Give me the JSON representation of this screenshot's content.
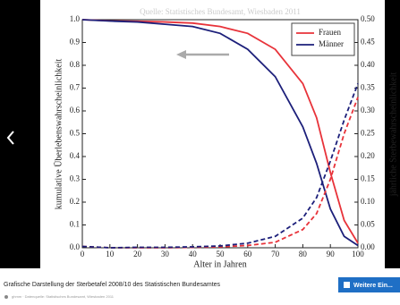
{
  "chart_data": {
    "type": "line",
    "title": "Quelle: Statistisches Bundesamt, Wiesbaden 2011",
    "x_label": "Alter in Jahren",
    "y_label": "kumulative Überlebenswahrscheinlichkeit",
    "y2_label": "jährliche Sterbewahrscheinlichkeit",
    "x": [
      0,
      10,
      20,
      30,
      40,
      50,
      60,
      70,
      80,
      85,
      90,
      95,
      100
    ],
    "series": [
      {
        "name": "Frauen",
        "color": "#e8333a",
        "values": [
          1.0,
          0.995,
          0.993,
          0.99,
          0.985,
          0.97,
          0.94,
          0.87,
          0.72,
          0.57,
          0.33,
          0.12,
          0.02
        ]
      },
      {
        "name": "Männer",
        "color": "#1c1f7a",
        "values": [
          1.0,
          0.994,
          0.99,
          0.98,
          0.97,
          0.94,
          0.87,
          0.75,
          0.53,
          0.37,
          0.17,
          0.05,
          0.01
        ]
      },
      {
        "color": "#e8333a",
        "line_style": "dashed",
        "axis": "y2",
        "values": [
          0.003,
          0.0,
          0.0,
          0.0,
          0.001,
          0.002,
          0.005,
          0.012,
          0.04,
          0.075,
          0.15,
          0.25,
          0.33
        ]
      },
      {
        "color": "#1c1f7a",
        "line_style": "dashed",
        "axis": "y2",
        "values": [
          0.003,
          0.0,
          0.001,
          0.001,
          0.002,
          0.004,
          0.01,
          0.025,
          0.065,
          0.11,
          0.19,
          0.28,
          0.36
        ]
      }
    ],
    "xlim": [
      0,
      100
    ],
    "xticks": [
      0,
      10,
      20,
      30,
      40,
      50,
      60,
      70,
      80,
      90,
      100
    ],
    "ylim": [
      0,
      1
    ],
    "yticks": [
      {
        "value": 0,
        "label": "0.0"
      },
      0.1,
      0.2,
      0.3,
      0.4,
      0.5,
      0.6,
      0.7,
      0.8,
      0.9,
      {
        "value": 1,
        "label": "1.0"
      }
    ],
    "y2lim": [
      0,
      0.5
    ],
    "y2ticks": [
      {
        "value": 0,
        "label": "0.00"
      },
      {
        "value": 0.05,
        "label": "0.05"
      },
      {
        "value": 0.1,
        "label": "0.10"
      },
      {
        "value": 0.15,
        "label": "0.15"
      },
      {
        "value": 0.2,
        "label": "0.20"
      },
      {
        "value": 0.25,
        "label": "0.25"
      },
      {
        "value": 0.3,
        "label": "0.30"
      },
      {
        "value": 0.35,
        "label": "0.35"
      },
      {
        "value": 0.4,
        "label": "0.40"
      },
      {
        "value": 0.45,
        "label": "0.45"
      },
      {
        "value": 0.5,
        "label": "0.50"
      }
    ],
    "grid": false,
    "legend": "upper right"
  },
  "ui": {
    "caption": "Grafische Darstellung der Sterbetafel 2008/10 des Statistischen Bundesamtes",
    "button": "Weitere Ein...",
    "footer": "ghmm · Datenquelle: Statistisches Bundesamt, Wiesbaden 2011"
  }
}
